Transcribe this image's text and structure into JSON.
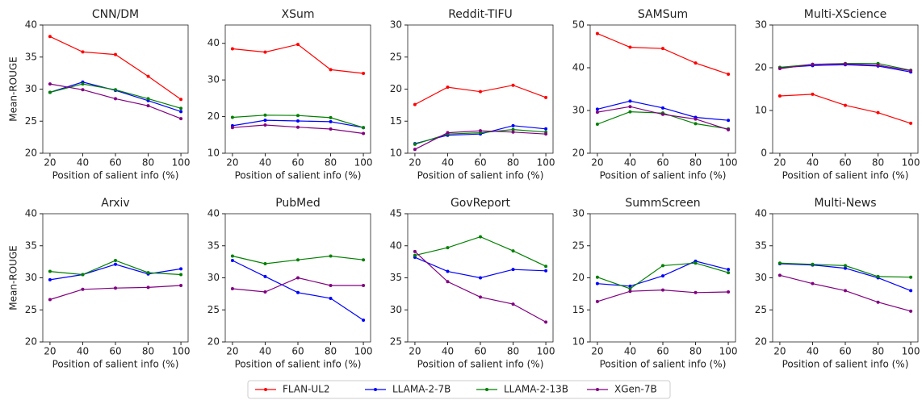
{
  "chart_data": [
    {
      "type": "line",
      "title": "CNN/DM",
      "xlabel": "Position of salient info (%)",
      "ylabel": "Mean-ROUGE",
      "x": [
        20,
        40,
        60,
        80,
        100
      ],
      "xlim": [
        15.6,
        104.4
      ],
      "xticks": [
        20,
        40,
        60,
        80,
        100
      ],
      "ylim": [
        20,
        40
      ],
      "yticks": [
        20,
        25,
        30,
        35,
        40
      ],
      "series": [
        {
          "name": "FLAN-UL2",
          "color": "#ff0000",
          "values": [
            38.2,
            35.8,
            35.4,
            32.0,
            28.4
          ]
        },
        {
          "name": "LLAMA-2-7B",
          "color": "#0000ff",
          "values": [
            29.5,
            31.1,
            29.8,
            28.2,
            26.5
          ]
        },
        {
          "name": "LLAMA-2-13B",
          "color": "#008000",
          "values": [
            29.5,
            30.8,
            29.9,
            28.5,
            27.0
          ]
        },
        {
          "name": "XGen-7B",
          "color": "#800080",
          "values": [
            30.8,
            29.9,
            28.5,
            27.4,
            25.4
          ]
        }
      ]
    },
    {
      "type": "line",
      "title": "XSum",
      "xlabel": "Position of salient info (%)",
      "x": [
        20,
        40,
        60,
        80,
        100
      ],
      "xlim": [
        15.6,
        104.4
      ],
      "xticks": [
        20,
        40,
        60,
        80,
        100
      ],
      "ylim": [
        10,
        45
      ],
      "yticks": [
        10,
        20,
        30,
        40
      ],
      "series": [
        {
          "name": "FLAN-UL2",
          "color": "#ff0000",
          "values": [
            38.5,
            37.6,
            39.7,
            32.8,
            31.8
          ]
        },
        {
          "name": "LLAMA-2-7B",
          "color": "#0000ff",
          "values": [
            17.5,
            19.0,
            18.8,
            18.6,
            17.0
          ]
        },
        {
          "name": "LLAMA-2-13B",
          "color": "#008000",
          "values": [
            19.8,
            20.4,
            20.3,
            19.7,
            17.0
          ]
        },
        {
          "name": "XGen-7B",
          "color": "#800080",
          "values": [
            17.0,
            17.7,
            17.1,
            16.6,
            15.4
          ]
        }
      ]
    },
    {
      "type": "line",
      "title": "Reddit-TIFU",
      "xlabel": "Position of salient info (%)",
      "x": [
        20,
        40,
        60,
        80,
        100
      ],
      "xlim": [
        15.6,
        104.4
      ],
      "xticks": [
        20,
        40,
        60,
        80,
        100
      ],
      "ylim": [
        10,
        30
      ],
      "yticks": [
        10,
        15,
        20,
        25,
        30
      ],
      "series": [
        {
          "name": "FLAN-UL2",
          "color": "#ff0000",
          "values": [
            17.6,
            20.3,
            19.6,
            20.6,
            18.7
          ]
        },
        {
          "name": "LLAMA-2-7B",
          "color": "#0000ff",
          "values": [
            11.5,
            12.8,
            13.0,
            14.3,
            13.8
          ]
        },
        {
          "name": "LLAMA-2-13B",
          "color": "#008000",
          "values": [
            11.4,
            13.0,
            13.2,
            13.7,
            13.3
          ]
        },
        {
          "name": "XGen-7B",
          "color": "#800080",
          "values": [
            10.6,
            13.2,
            13.5,
            13.3,
            13.0
          ]
        }
      ]
    },
    {
      "type": "line",
      "title": "SAMSum",
      "xlabel": "Position of salient info (%)",
      "x": [
        20,
        40,
        60,
        80,
        100
      ],
      "xlim": [
        15.6,
        104.4
      ],
      "xticks": [
        20,
        40,
        60,
        80,
        100
      ],
      "ylim": [
        20,
        50
      ],
      "yticks": [
        20,
        30,
        40,
        50
      ],
      "series": [
        {
          "name": "FLAN-UL2",
          "color": "#ff0000",
          "values": [
            48.0,
            44.8,
            44.5,
            41.1,
            38.5
          ]
        },
        {
          "name": "LLAMA-2-7B",
          "color": "#0000ff",
          "values": [
            30.3,
            32.2,
            30.6,
            28.4,
            27.7
          ]
        },
        {
          "name": "LLAMA-2-13B",
          "color": "#008000",
          "values": [
            26.8,
            29.7,
            29.4,
            26.9,
            25.7
          ]
        },
        {
          "name": "XGen-7B",
          "color": "#800080",
          "values": [
            29.6,
            30.9,
            29.1,
            28.0,
            25.5
          ]
        }
      ]
    },
    {
      "type": "line",
      "title": "Multi-XScience",
      "xlabel": "Position of salient info (%)",
      "x": [
        20,
        40,
        60,
        80,
        100
      ],
      "xlim": [
        15.6,
        104.4
      ],
      "xticks": [
        20,
        40,
        60,
        80,
        100
      ],
      "ylim": [
        0,
        30
      ],
      "yticks": [
        0,
        10,
        20,
        30
      ],
      "series": [
        {
          "name": "FLAN-UL2",
          "color": "#ff0000",
          "values": [
            13.4,
            13.8,
            11.2,
            9.5,
            7.0
          ]
        },
        {
          "name": "LLAMA-2-7B",
          "color": "#0000ff",
          "values": [
            20.0,
            20.5,
            20.7,
            20.4,
            19.0
          ]
        },
        {
          "name": "LLAMA-2-13B",
          "color": "#008000",
          "values": [
            20.1,
            20.8,
            21.0,
            21.0,
            19.4
          ]
        },
        {
          "name": "XGen-7B",
          "color": "#800080",
          "values": [
            19.8,
            20.8,
            20.9,
            20.6,
            19.3
          ]
        }
      ]
    },
    {
      "type": "line",
      "title": "Arxiv",
      "xlabel": "Position of salient info (%)",
      "ylabel": "Mean-ROUGE",
      "x": [
        20,
        40,
        60,
        80,
        100
      ],
      "xlim": [
        15.6,
        104.4
      ],
      "xticks": [
        20,
        40,
        60,
        80,
        100
      ],
      "ylim": [
        20,
        40
      ],
      "yticks": [
        20,
        25,
        30,
        35,
        40
      ],
      "series": [
        {
          "name": "LLAMA-2-7B",
          "color": "#0000ff",
          "values": [
            29.7,
            30.5,
            32.1,
            30.6,
            31.4
          ]
        },
        {
          "name": "LLAMA-2-13B",
          "color": "#008000",
          "values": [
            31.0,
            30.5,
            32.7,
            30.8,
            30.5
          ]
        },
        {
          "name": "XGen-7B",
          "color": "#800080",
          "values": [
            26.6,
            28.2,
            28.4,
            28.5,
            28.8
          ]
        }
      ]
    },
    {
      "type": "line",
      "title": "PubMed",
      "xlabel": "Position of salient info (%)",
      "x": [
        20,
        40,
        60,
        80,
        100
      ],
      "xlim": [
        15.6,
        104.4
      ],
      "xticks": [
        20,
        40,
        60,
        80,
        100
      ],
      "ylim": [
        20,
        40
      ],
      "yticks": [
        20,
        25,
        30,
        35,
        40
      ],
      "series": [
        {
          "name": "LLAMA-2-7B",
          "color": "#0000ff",
          "values": [
            32.7,
            30.2,
            27.7,
            26.8,
            23.4
          ]
        },
        {
          "name": "LLAMA-2-13B",
          "color": "#008000",
          "values": [
            33.4,
            32.2,
            32.8,
            33.4,
            32.8
          ]
        },
        {
          "name": "XGen-7B",
          "color": "#800080",
          "values": [
            28.3,
            27.8,
            30.0,
            28.8,
            28.8
          ]
        }
      ]
    },
    {
      "type": "line",
      "title": "GovReport",
      "xlabel": "Position of salient info (%)",
      "x": [
        20,
        40,
        60,
        80,
        100
      ],
      "xlim": [
        15.6,
        104.4
      ],
      "xticks": [
        20,
        40,
        60,
        80,
        100
      ],
      "ylim": [
        25,
        45
      ],
      "yticks": [
        25,
        30,
        35,
        40,
        45
      ],
      "series": [
        {
          "name": "LLAMA-2-7B",
          "color": "#0000ff",
          "values": [
            38.2,
            36.0,
            35.0,
            36.3,
            36.1
          ]
        },
        {
          "name": "LLAMA-2-13B",
          "color": "#008000",
          "values": [
            38.5,
            39.7,
            41.4,
            39.2,
            36.8
          ]
        },
        {
          "name": "XGen-7B",
          "color": "#800080",
          "values": [
            39.1,
            34.4,
            32.0,
            30.9,
            28.1
          ]
        }
      ]
    },
    {
      "type": "line",
      "title": "SummScreen",
      "xlabel": "Position of salient info (%)",
      "x": [
        20,
        40,
        60,
        80,
        100
      ],
      "xlim": [
        15.6,
        104.4
      ],
      "xticks": [
        20,
        40,
        60,
        80,
        100
      ],
      "ylim": [
        10,
        30
      ],
      "yticks": [
        10,
        15,
        20,
        25,
        30
      ],
      "series": [
        {
          "name": "LLAMA-2-7B",
          "color": "#0000ff",
          "values": [
            19.1,
            18.7,
            20.3,
            22.6,
            21.3
          ]
        },
        {
          "name": "LLAMA-2-13B",
          "color": "#008000",
          "values": [
            20.1,
            18.3,
            21.9,
            22.3,
            20.8
          ]
        },
        {
          "name": "XGen-7B",
          "color": "#800080",
          "values": [
            16.3,
            17.9,
            18.1,
            17.7,
            17.8
          ]
        }
      ]
    },
    {
      "type": "line",
      "title": "Multi-News",
      "xlabel": "Position of salient info (%)",
      "x": [
        20,
        40,
        60,
        80,
        100
      ],
      "xlim": [
        15.6,
        104.4
      ],
      "xticks": [
        20,
        40,
        60,
        80,
        100
      ],
      "ylim": [
        20,
        40
      ],
      "yticks": [
        20,
        25,
        30,
        35,
        40
      ],
      "series": [
        {
          "name": "LLAMA-2-7B",
          "color": "#0000ff",
          "values": [
            32.2,
            32.0,
            31.5,
            30.0,
            28.0
          ]
        },
        {
          "name": "LLAMA-2-13B",
          "color": "#008000",
          "values": [
            32.3,
            32.1,
            31.9,
            30.2,
            30.1
          ]
        },
        {
          "name": "XGen-7B",
          "color": "#800080",
          "values": [
            30.4,
            29.1,
            28.0,
            26.2,
            24.8
          ]
        }
      ]
    }
  ]
}
